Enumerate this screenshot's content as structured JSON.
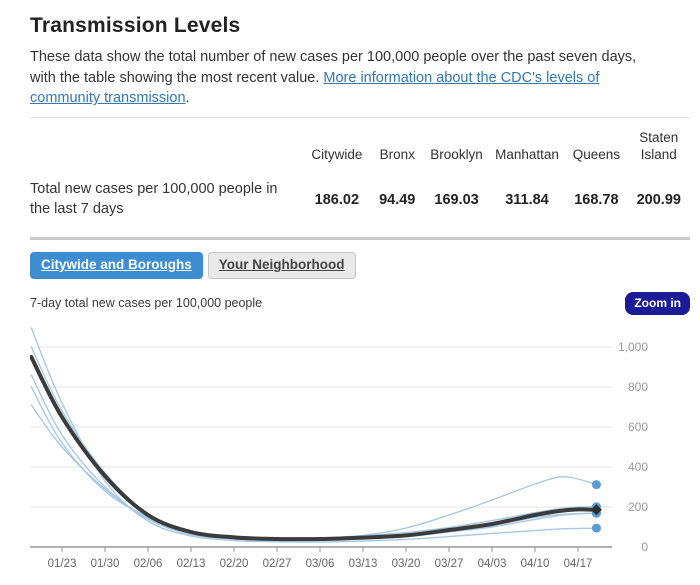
{
  "page": {
    "title": "Transmission Levels",
    "description_before_link": "These data show the total number of new cases per 100,000 people over the past seven days, with the table showing the most recent value. ",
    "link_text": "More information about the CDC's levels of community transmission",
    "description_after_link": "."
  },
  "table": {
    "columns": [
      "Citywide",
      "Bronx",
      "Brooklyn",
      "Manhattan",
      "Queens",
      "Staten Island"
    ],
    "row": {
      "label": "Total new cases per 100,000 people in the last 7 days",
      "values": [
        "186.02",
        "94.49",
        "169.03",
        "311.84",
        "168.78",
        "200.99"
      ]
    }
  },
  "tabs": [
    {
      "label": "Citywide and Boroughs",
      "active": true
    },
    {
      "label": "Your Neighborhood",
      "active": false
    }
  ],
  "chart": {
    "subtitle": "7-day total new cases per 100,000 people",
    "zoom_button_label": "Zoom in"
  },
  "colors": {
    "active_tab": "#3e8dd0",
    "zoom_button": "#1b1b96",
    "link": "#3377b4",
    "borough_line": "#a3c6e4",
    "citywide_line": "#3b3b3b",
    "endpoint_dot": "#5b9bd5",
    "citywide_marker": "#2e2e2e",
    "gridline": "#e6e6e6",
    "axis": "#999999",
    "x_label": "#666666",
    "y_label": "#999999"
  },
  "chart_data": {
    "type": "line",
    "title": "7-day total new cases per 100,000 people",
    "xlabel": "",
    "ylabel": "",
    "ylim": [
      0,
      1100
    ],
    "grid": true,
    "legend": "none",
    "y_ticks": [
      0,
      200,
      400,
      600,
      800,
      1000
    ],
    "y_tick_labels": [
      "0",
      "200",
      "400",
      "600",
      "800",
      "1,000"
    ],
    "x_tick_labels": [
      "01/23",
      "01/30",
      "02/06",
      "02/13",
      "02/20",
      "02/27",
      "03/06",
      "03/13",
      "03/20",
      "03/27",
      "04/03",
      "04/10",
      "04/17"
    ],
    "x_tick_days": [
      5,
      12,
      19,
      26,
      33,
      40,
      47,
      54,
      61,
      68,
      75,
      82,
      89
    ],
    "days": [
      0,
      5,
      12,
      19,
      26,
      33,
      40,
      47,
      54,
      61,
      68,
      75,
      82,
      86,
      89,
      92
    ],
    "series": [
      {
        "name": "Bronx",
        "emphasis": false,
        "latest": 94.49,
        "values": [
          1095,
          720,
          330,
          130,
          55,
          32,
          26,
          25,
          30,
          38,
          52,
          68,
          82,
          90,
          93,
          94
        ]
      },
      {
        "name": "Brooklyn",
        "emphasis": false,
        "latest": 169.03,
        "values": [
          860,
          560,
          300,
          140,
          62,
          40,
          33,
          34,
          41,
          52,
          75,
          100,
          138,
          158,
          166,
          169
        ]
      },
      {
        "name": "Queens",
        "emphasis": false,
        "latest": 168.78,
        "values": [
          1000,
          680,
          370,
          165,
          72,
          45,
          36,
          36,
          44,
          56,
          80,
          108,
          148,
          162,
          167,
          169
        ]
      },
      {
        "name": "Manhattan",
        "emphasis": false,
        "latest": 311.84,
        "values": [
          710,
          500,
          290,
          145,
          68,
          42,
          38,
          44,
          58,
          95,
          160,
          235,
          315,
          350,
          340,
          312
        ]
      },
      {
        "name": "Staten Island",
        "emphasis": false,
        "latest": 200.99,
        "values": [
          800,
          520,
          280,
          150,
          80,
          55,
          46,
          46,
          56,
          72,
          98,
          132,
          172,
          192,
          200,
          201
        ]
      },
      {
        "name": "Citywide",
        "emphasis": true,
        "latest": 186.02,
        "values": [
          950,
          650,
          355,
          160,
          75,
          48,
          40,
          40,
          47,
          58,
          85,
          115,
          160,
          180,
          188,
          186
        ]
      }
    ]
  }
}
